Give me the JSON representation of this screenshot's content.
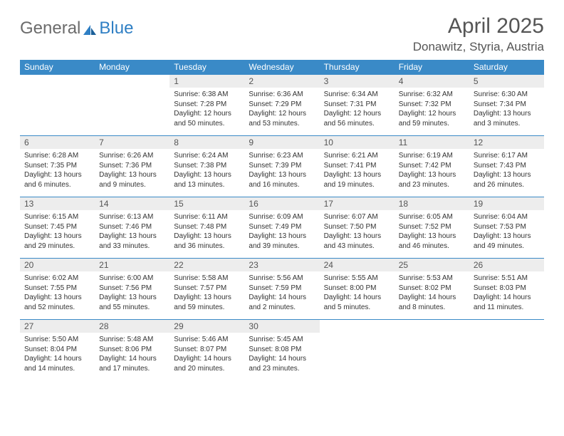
{
  "logo": {
    "text1": "General",
    "text2": "Blue"
  },
  "title": "April 2025",
  "location": "Donawitz, Styria, Austria",
  "colors": {
    "header_bg": "#3a8ac7",
    "header_text": "#ffffff",
    "daynum_bg": "#ededed",
    "border": "#3a8ac7",
    "title_color": "#555555",
    "logo_gray": "#6b6b6b",
    "logo_blue": "#2f7fc4"
  },
  "day_names": [
    "Sunday",
    "Monday",
    "Tuesday",
    "Wednesday",
    "Thursday",
    "Friday",
    "Saturday"
  ],
  "weeks": [
    [
      null,
      null,
      {
        "n": "1",
        "sr": "Sunrise: 6:38 AM",
        "ss": "Sunset: 7:28 PM",
        "d1": "Daylight: 12 hours",
        "d2": "and 50 minutes."
      },
      {
        "n": "2",
        "sr": "Sunrise: 6:36 AM",
        "ss": "Sunset: 7:29 PM",
        "d1": "Daylight: 12 hours",
        "d2": "and 53 minutes."
      },
      {
        "n": "3",
        "sr": "Sunrise: 6:34 AM",
        "ss": "Sunset: 7:31 PM",
        "d1": "Daylight: 12 hours",
        "d2": "and 56 minutes."
      },
      {
        "n": "4",
        "sr": "Sunrise: 6:32 AM",
        "ss": "Sunset: 7:32 PM",
        "d1": "Daylight: 12 hours",
        "d2": "and 59 minutes."
      },
      {
        "n": "5",
        "sr": "Sunrise: 6:30 AM",
        "ss": "Sunset: 7:34 PM",
        "d1": "Daylight: 13 hours",
        "d2": "and 3 minutes."
      }
    ],
    [
      {
        "n": "6",
        "sr": "Sunrise: 6:28 AM",
        "ss": "Sunset: 7:35 PM",
        "d1": "Daylight: 13 hours",
        "d2": "and 6 minutes."
      },
      {
        "n": "7",
        "sr": "Sunrise: 6:26 AM",
        "ss": "Sunset: 7:36 PM",
        "d1": "Daylight: 13 hours",
        "d2": "and 9 minutes."
      },
      {
        "n": "8",
        "sr": "Sunrise: 6:24 AM",
        "ss": "Sunset: 7:38 PM",
        "d1": "Daylight: 13 hours",
        "d2": "and 13 minutes."
      },
      {
        "n": "9",
        "sr": "Sunrise: 6:23 AM",
        "ss": "Sunset: 7:39 PM",
        "d1": "Daylight: 13 hours",
        "d2": "and 16 minutes."
      },
      {
        "n": "10",
        "sr": "Sunrise: 6:21 AM",
        "ss": "Sunset: 7:41 PM",
        "d1": "Daylight: 13 hours",
        "d2": "and 19 minutes."
      },
      {
        "n": "11",
        "sr": "Sunrise: 6:19 AM",
        "ss": "Sunset: 7:42 PM",
        "d1": "Daylight: 13 hours",
        "d2": "and 23 minutes."
      },
      {
        "n": "12",
        "sr": "Sunrise: 6:17 AM",
        "ss": "Sunset: 7:43 PM",
        "d1": "Daylight: 13 hours",
        "d2": "and 26 minutes."
      }
    ],
    [
      {
        "n": "13",
        "sr": "Sunrise: 6:15 AM",
        "ss": "Sunset: 7:45 PM",
        "d1": "Daylight: 13 hours",
        "d2": "and 29 minutes."
      },
      {
        "n": "14",
        "sr": "Sunrise: 6:13 AM",
        "ss": "Sunset: 7:46 PM",
        "d1": "Daylight: 13 hours",
        "d2": "and 33 minutes."
      },
      {
        "n": "15",
        "sr": "Sunrise: 6:11 AM",
        "ss": "Sunset: 7:48 PM",
        "d1": "Daylight: 13 hours",
        "d2": "and 36 minutes."
      },
      {
        "n": "16",
        "sr": "Sunrise: 6:09 AM",
        "ss": "Sunset: 7:49 PM",
        "d1": "Daylight: 13 hours",
        "d2": "and 39 minutes."
      },
      {
        "n": "17",
        "sr": "Sunrise: 6:07 AM",
        "ss": "Sunset: 7:50 PM",
        "d1": "Daylight: 13 hours",
        "d2": "and 43 minutes."
      },
      {
        "n": "18",
        "sr": "Sunrise: 6:05 AM",
        "ss": "Sunset: 7:52 PM",
        "d1": "Daylight: 13 hours",
        "d2": "and 46 minutes."
      },
      {
        "n": "19",
        "sr": "Sunrise: 6:04 AM",
        "ss": "Sunset: 7:53 PM",
        "d1": "Daylight: 13 hours",
        "d2": "and 49 minutes."
      }
    ],
    [
      {
        "n": "20",
        "sr": "Sunrise: 6:02 AM",
        "ss": "Sunset: 7:55 PM",
        "d1": "Daylight: 13 hours",
        "d2": "and 52 minutes."
      },
      {
        "n": "21",
        "sr": "Sunrise: 6:00 AM",
        "ss": "Sunset: 7:56 PM",
        "d1": "Daylight: 13 hours",
        "d2": "and 55 minutes."
      },
      {
        "n": "22",
        "sr": "Sunrise: 5:58 AM",
        "ss": "Sunset: 7:57 PM",
        "d1": "Daylight: 13 hours",
        "d2": "and 59 minutes."
      },
      {
        "n": "23",
        "sr": "Sunrise: 5:56 AM",
        "ss": "Sunset: 7:59 PM",
        "d1": "Daylight: 14 hours",
        "d2": "and 2 minutes."
      },
      {
        "n": "24",
        "sr": "Sunrise: 5:55 AM",
        "ss": "Sunset: 8:00 PM",
        "d1": "Daylight: 14 hours",
        "d2": "and 5 minutes."
      },
      {
        "n": "25",
        "sr": "Sunrise: 5:53 AM",
        "ss": "Sunset: 8:02 PM",
        "d1": "Daylight: 14 hours",
        "d2": "and 8 minutes."
      },
      {
        "n": "26",
        "sr": "Sunrise: 5:51 AM",
        "ss": "Sunset: 8:03 PM",
        "d1": "Daylight: 14 hours",
        "d2": "and 11 minutes."
      }
    ],
    [
      {
        "n": "27",
        "sr": "Sunrise: 5:50 AM",
        "ss": "Sunset: 8:04 PM",
        "d1": "Daylight: 14 hours",
        "d2": "and 14 minutes."
      },
      {
        "n": "28",
        "sr": "Sunrise: 5:48 AM",
        "ss": "Sunset: 8:06 PM",
        "d1": "Daylight: 14 hours",
        "d2": "and 17 minutes."
      },
      {
        "n": "29",
        "sr": "Sunrise: 5:46 AM",
        "ss": "Sunset: 8:07 PM",
        "d1": "Daylight: 14 hours",
        "d2": "and 20 minutes."
      },
      {
        "n": "30",
        "sr": "Sunrise: 5:45 AM",
        "ss": "Sunset: 8:08 PM",
        "d1": "Daylight: 14 hours",
        "d2": "and 23 minutes."
      },
      null,
      null,
      null
    ]
  ]
}
